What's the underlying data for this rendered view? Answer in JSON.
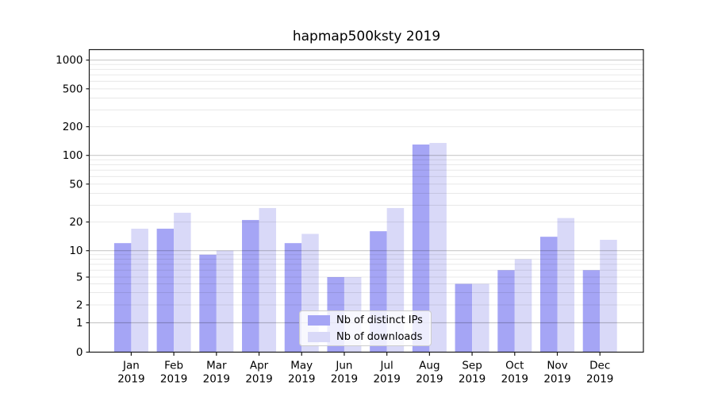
{
  "chart_data": {
    "type": "bar",
    "title": "hapmap500ksty 2019",
    "categories": [
      "Jan",
      "Feb",
      "Mar",
      "Apr",
      "May",
      "Jun",
      "Jul",
      "Aug",
      "Sep",
      "Oct",
      "Nov",
      "Dec"
    ],
    "year_label": "2019",
    "series": [
      {
        "name": "Nb of distinct IPs",
        "color": "#a5a5f5",
        "values": [
          12,
          17,
          9,
          21,
          12,
          5,
          16,
          130,
          4,
          6,
          14,
          6
        ]
      },
      {
        "name": "Nb of downloads",
        "color": "#d9d9f8",
        "values": [
          17,
          25,
          10,
          28,
          15,
          5,
          28,
          135,
          4,
          8,
          22,
          13
        ]
      }
    ],
    "yscale": "symlog",
    "yticks": [
      0,
      1,
      2,
      5,
      10,
      20,
      50,
      100,
      200,
      500,
      1000
    ],
    "ylim": [
      0,
      1300
    ],
    "grid": true,
    "legend_position": "lower center inside",
    "background_color": "#ffffff",
    "major_grid_values": [
      1,
      10,
      100,
      1000
    ]
  }
}
